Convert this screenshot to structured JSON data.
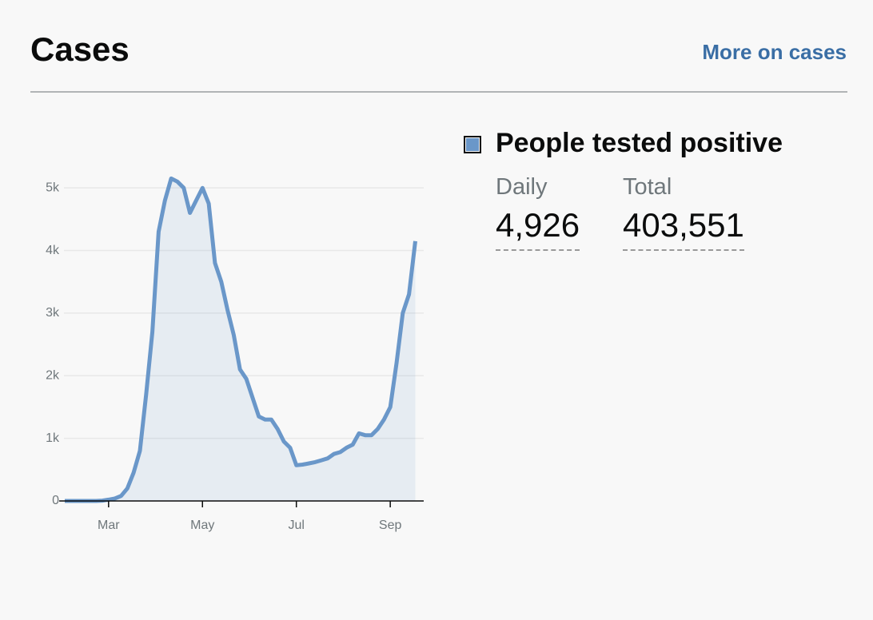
{
  "header": {
    "title": "Cases",
    "link": "More on cases"
  },
  "summary": {
    "legend": "People tested positive",
    "metrics": [
      {
        "label": "Daily",
        "value": "4,926"
      },
      {
        "label": "Total",
        "value": "403,551"
      }
    ]
  },
  "chart_data": {
    "type": "line",
    "categories": [
      null,
      null,
      null,
      null,
      null,
      null,
      null,
      "Mar",
      null,
      null,
      null,
      null,
      null,
      null,
      null,
      null,
      null,
      null,
      null,
      null,
      null,
      null,
      "May",
      null,
      null,
      null,
      null,
      null,
      null,
      null,
      null,
      null,
      null,
      null,
      null,
      null,
      null,
      "Jul",
      null,
      null,
      null,
      null,
      null,
      null,
      null,
      null,
      null,
      null,
      null,
      null,
      null,
      null,
      "Sep",
      null,
      null,
      null,
      null
    ],
    "series": [
      {
        "name": "People tested positive",
        "color": "#6a97c9",
        "values": [
          0,
          0,
          0,
          0,
          0,
          0,
          5,
          20,
          40,
          80,
          200,
          450,
          800,
          1700,
          2700,
          4300,
          4800,
          5150,
          5100,
          5000,
          4600,
          4800,
          5000,
          4750,
          3800,
          3500,
          3050,
          2650,
          2100,
          1950,
          1650,
          1350,
          1300,
          1300,
          1150,
          950,
          850,
          570,
          580,
          600,
          620,
          650,
          680,
          750,
          780,
          850,
          900,
          1080,
          1050,
          1050,
          1150,
          1300,
          1500,
          2200,
          3000,
          3300,
          4150
        ]
      }
    ],
    "ylim": [
      0,
      5500
    ],
    "yticks": [
      0,
      {
        "value": 1000,
        "label": "1k"
      },
      {
        "value": 2000,
        "label": "2k"
      },
      {
        "value": 3000,
        "label": "3k"
      },
      {
        "value": 4000,
        "label": "4k"
      },
      {
        "value": 5000,
        "label": "5k"
      }
    ],
    "grid": true
  }
}
